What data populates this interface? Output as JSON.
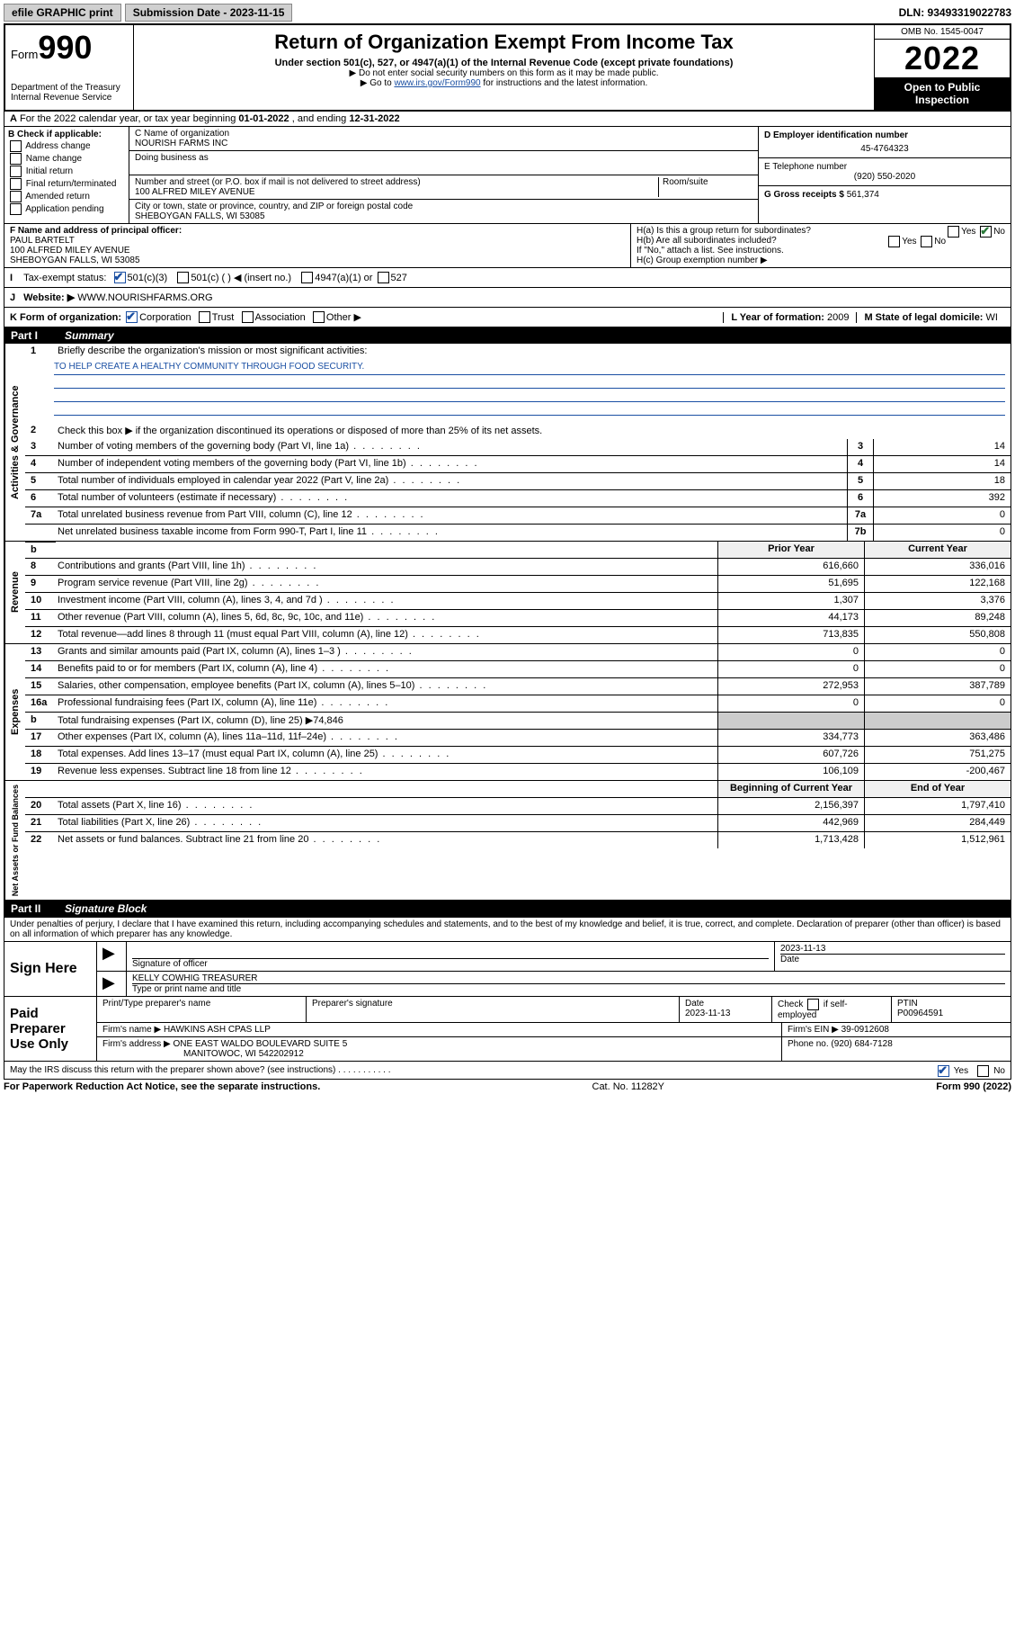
{
  "top": {
    "efile": "efile GRAPHIC print",
    "submission_label": "Submission Date - 2023-11-15",
    "dln": "DLN: 93493319022783"
  },
  "header": {
    "form_prefix": "Form",
    "form_no": "990",
    "dept": "Department of the Treasury",
    "irs": "Internal Revenue Service",
    "title": "Return of Organization Exempt From Income Tax",
    "sub1": "Under section 501(c), 527, or 4947(a)(1) of the Internal Revenue Code (except private foundations)",
    "sub2": "▶ Do not enter social security numbers on this form as it may be made public.",
    "sub3_a": "▶ Go to ",
    "sub3_link": "www.irs.gov/Form990",
    "sub3_b": " for instructions and the latest information.",
    "omb": "OMB No. 1545-0047",
    "year": "2022",
    "open": "Open to Public Inspection"
  },
  "A": {
    "text_a": "For the 2022 calendar year, or tax year beginning ",
    "begin": "01-01-2022",
    "text_b": " , and ending ",
    "end": "12-31-2022"
  },
  "B": {
    "label": "B Check if applicable:",
    "items": [
      "Address change",
      "Name change",
      "Initial return",
      "Final return/terminated",
      "Amended return",
      "Application pending"
    ]
  },
  "C": {
    "name_label": "C Name of organization",
    "name": "NOURISH FARMS INC",
    "dba_label": "Doing business as",
    "addr_label": "Number and street (or P.O. box if mail is not delivered to street address)",
    "room_label": "Room/suite",
    "addr": "100 ALFRED MILEY AVENUE",
    "city_label": "City or town, state or province, country, and ZIP or foreign postal code",
    "city": "SHEBOYGAN FALLS, WI  53085"
  },
  "D": {
    "label": "D Employer identification number",
    "value": "45-4764323"
  },
  "E": {
    "label": "E Telephone number",
    "value": "(920) 550-2020"
  },
  "G": {
    "label": "G Gross receipts $",
    "value": "561,374"
  },
  "F": {
    "label": "F  Name and address of principal officer:",
    "name": "PAUL BARTELT",
    "addr1": "100 ALFRED MILEY AVENUE",
    "addr2": "SHEBOYGAN FALLS, WI  53085"
  },
  "H": {
    "a": "H(a)  Is this a group return for subordinates?",
    "b": "H(b)  Are all subordinates included?",
    "b_note": "If \"No,\" attach a list. See instructions.",
    "c": "H(c)  Group exemption number ▶",
    "yes": "Yes",
    "no": "No"
  },
  "I": {
    "label": "Tax-exempt status:",
    "opt1": "501(c)(3)",
    "opt2": "501(c) (  ) ◀ (insert no.)",
    "opt3": "4947(a)(1) or",
    "opt4": "527"
  },
  "J": {
    "label": "Website: ▶",
    "value": "WWW.NOURISHFARMS.ORG"
  },
  "K": {
    "label": "K Form of organization:",
    "corp": "Corporation",
    "trust": "Trust",
    "assoc": "Association",
    "other": "Other ▶"
  },
  "L": {
    "label": "L Year of formation:",
    "value": "2009"
  },
  "M": {
    "label": "M State of legal domicile:",
    "value": "WI"
  },
  "partI": {
    "label": "Part I",
    "title": "Summary"
  },
  "summary": {
    "mission_q": "Briefly describe the organization's mission or most significant activities:",
    "mission": "TO HELP CREATE A HEALTHY COMMUNITY THROUGH FOOD SECURITY.",
    "line2": "Check this box ▶        if the organization discontinued its operations or disposed of more than 25% of its net assets.",
    "gov": [
      {
        "n": "3",
        "d": "Number of voting members of the governing body (Part VI, line 1a)",
        "k": "3",
        "v": "14"
      },
      {
        "n": "4",
        "d": "Number of independent voting members of the governing body (Part VI, line 1b)",
        "k": "4",
        "v": "14"
      },
      {
        "n": "5",
        "d": "Total number of individuals employed in calendar year 2022 (Part V, line 2a)",
        "k": "5",
        "v": "18"
      },
      {
        "n": "6",
        "d": "Total number of volunteers (estimate if necessary)",
        "k": "6",
        "v": "392"
      },
      {
        "n": "7a",
        "d": "Total unrelated business revenue from Part VIII, column (C), line 12",
        "k": "7a",
        "v": "0"
      },
      {
        "n": "",
        "d": "Net unrelated business taxable income from Form 990-T, Part I, line 11",
        "k": "7b",
        "v": "0"
      }
    ],
    "hdr_prior": "Prior Year",
    "hdr_curr": "Current Year",
    "rev": [
      {
        "n": "8",
        "d": "Contributions and grants (Part VIII, line 1h)",
        "p": "616,660",
        "c": "336,016"
      },
      {
        "n": "9",
        "d": "Program service revenue (Part VIII, line 2g)",
        "p": "51,695",
        "c": "122,168"
      },
      {
        "n": "10",
        "d": "Investment income (Part VIII, column (A), lines 3, 4, and 7d )",
        "p": "1,307",
        "c": "3,376"
      },
      {
        "n": "11",
        "d": "Other revenue (Part VIII, column (A), lines 5, 6d, 8c, 9c, 10c, and 11e)",
        "p": "44,173",
        "c": "89,248"
      },
      {
        "n": "12",
        "d": "Total revenue—add lines 8 through 11 (must equal Part VIII, column (A), line 12)",
        "p": "713,835",
        "c": "550,808"
      }
    ],
    "exp": [
      {
        "n": "13",
        "d": "Grants and similar amounts paid (Part IX, column (A), lines 1–3 )",
        "p": "0",
        "c": "0"
      },
      {
        "n": "14",
        "d": "Benefits paid to or for members (Part IX, column (A), line 4)",
        "p": "0",
        "c": "0"
      },
      {
        "n": "15",
        "d": "Salaries, other compensation, employee benefits (Part IX, column (A), lines 5–10)",
        "p": "272,953",
        "c": "387,789"
      },
      {
        "n": "16a",
        "d": "Professional fundraising fees (Part IX, column (A), line 11e)",
        "p": "0",
        "c": "0"
      },
      {
        "n": "b",
        "d": "Total fundraising expenses (Part IX, column (D), line 25) ▶74,846",
        "p": "",
        "c": "",
        "noval": true
      },
      {
        "n": "17",
        "d": "Other expenses (Part IX, column (A), lines 11a–11d, 11f–24e)",
        "p": "334,773",
        "c": "363,486"
      },
      {
        "n": "18",
        "d": "Total expenses. Add lines 13–17 (must equal Part IX, column (A), line 25)",
        "p": "607,726",
        "c": "751,275"
      },
      {
        "n": "19",
        "d": "Revenue less expenses. Subtract line 18 from line 12",
        "p": "106,109",
        "c": "-200,467"
      }
    ],
    "hdr_begin": "Beginning of Current Year",
    "hdr_end": "End of Year",
    "net": [
      {
        "n": "20",
        "d": "Total assets (Part X, line 16)",
        "p": "2,156,397",
        "c": "1,797,410"
      },
      {
        "n": "21",
        "d": "Total liabilities (Part X, line 26)",
        "p": "442,969",
        "c": "284,449"
      },
      {
        "n": "22",
        "d": "Net assets or fund balances. Subtract line 21 from line 20",
        "p": "1,713,428",
        "c": "1,512,961"
      }
    ],
    "side_gov": "Activities & Governance",
    "side_rev": "Revenue",
    "side_exp": "Expenses",
    "side_net": "Net Assets or Fund Balances"
  },
  "partII": {
    "label": "Part II",
    "title": "Signature Block"
  },
  "sig": {
    "intro": "Under penalties of perjury, I declare that I have examined this return, including accompanying schedules and statements, and to the best of my knowledge and belief, it is true, correct, and complete. Declaration of preparer (other than officer) is based on all information of which preparer has any knowledge.",
    "sign_here": "Sign Here",
    "sig_officer": "Signature of officer",
    "date_label": "Date",
    "date": "2023-11-13",
    "name_title": "KELLY COWHIG  TREASURER",
    "type_label": "Type or print name and title",
    "paid": "Paid Preparer Use Only",
    "prep_name_label": "Print/Type preparer's name",
    "prep_sig_label": "Preparer's signature",
    "prep_date": "2023-11-13",
    "check_if": "Check        if self-employed",
    "ptin_label": "PTIN",
    "ptin": "P00964591",
    "firm_name_label": "Firm's name    ▶",
    "firm_name": "HAWKINS ASH CPAS LLP",
    "firm_ein_label": "Firm's EIN ▶",
    "firm_ein": "39-0912608",
    "firm_addr_label": "Firm's address ▶",
    "firm_addr1": "ONE EAST WALDO BOULEVARD SUITE 5",
    "firm_addr2": "MANITOWOC, WI  542202912",
    "phone_label": "Phone no.",
    "phone": "(920) 684-7128",
    "discuss": "May the IRS discuss this return with the preparer shown above? (see instructions)",
    "yes": "Yes",
    "no": "No"
  },
  "footer": {
    "left": "For Paperwork Reduction Act Notice, see the separate instructions.",
    "mid": "Cat. No. 11282Y",
    "right": "Form 990 (2022)"
  }
}
